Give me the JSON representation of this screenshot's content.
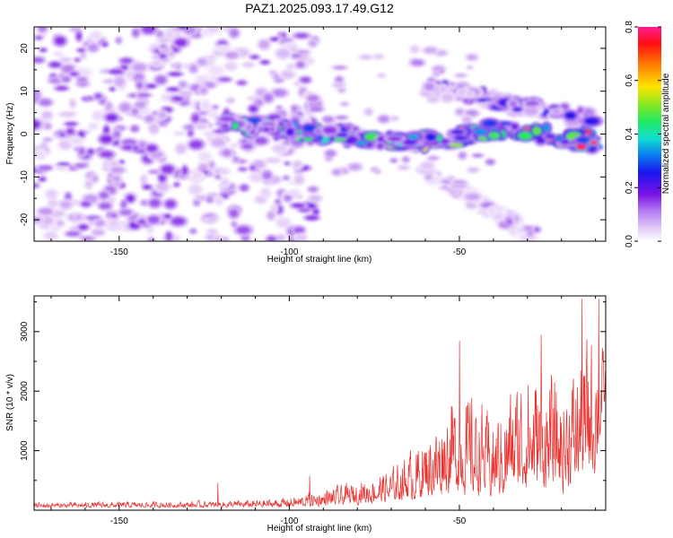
{
  "chart_data": [
    {
      "type": "heatmap",
      "title": "PAZ1.2025.093.17.49.G12",
      "xlabel": "Height of straight line (km)",
      "ylabel": "Frequency (Hz)",
      "xlim": [
        -175,
        -7
      ],
      "ylim": [
        -25,
        25
      ],
      "x_ticks": [
        -150,
        -100,
        -50
      ],
      "x_tick_labels": [
        "-150",
        "-100",
        "-50"
      ],
      "y_ticks": [
        20,
        10,
        0,
        -10,
        -20
      ],
      "y_tick_labels": [
        "20",
        "10",
        "0",
        "-10",
        "-20"
      ],
      "colorbar": {
        "label": "Normalized spectral amplitude",
        "range": [
          0,
          0.8
        ],
        "ticks": [
          0,
          0.2,
          0.4,
          0.6,
          0.8
        ],
        "tick_labels": [
          "0.0",
          "0.2",
          "0.4",
          "0.6",
          "0.8"
        ],
        "colormap": "rainbow (purple low → red high)"
      },
      "features": [
        {
          "name": "main signal ridge",
          "points": [
            [
              -120,
              3.5
            ],
            [
              -100,
              0.5
            ],
            [
              -85,
              0
            ],
            [
              -70,
              -1.5
            ],
            [
              -55,
              -1.5
            ],
            [
              -40,
              1
            ],
            [
              -25,
              0
            ],
            [
              -10,
              -2
            ]
          ],
          "peak_amplitude": 0.8
        },
        {
          "name": "upper branch",
          "points": [
            [
              -60,
              11
            ],
            [
              -45,
              9
            ],
            [
              -35,
              7
            ],
            [
              -20,
              5
            ],
            [
              -10,
              3
            ]
          ],
          "peak_amplitude": 0.35
        },
        {
          "name": "lower branch",
          "points": [
            [
              -60,
              -8
            ],
            [
              -50,
              -13
            ],
            [
              -40,
              -18
            ],
            [
              -28,
              -24
            ]
          ],
          "peak_amplitude": 0.15
        },
        {
          "name": "broadband noise region",
          "x_range": [
            -175,
            -100
          ],
          "y_range": [
            -25,
            25
          ],
          "typical_amplitude": 0.1
        }
      ]
    },
    {
      "type": "line",
      "xlabel": "Height of straight line (km)",
      "ylabel": "SNR (10 * v/v)",
      "xlim": [
        -175,
        -7
      ],
      "ylim": [
        0,
        3600
      ],
      "x_ticks": [
        -150,
        -100,
        -50
      ],
      "x_tick_labels": [
        "-150",
        "-100",
        "-50"
      ],
      "y_ticks": [
        1000,
        2000,
        3000
      ],
      "y_tick_labels": [
        "1000",
        "2000",
        "3000"
      ],
      "line_color": "#e8322f",
      "envelope": {
        "x": [
          -175,
          -130,
          -110,
          -100,
          -90,
          -80,
          -70,
          -60,
          -50,
          -40,
          -30,
          -20,
          -10,
          -7
        ],
        "y_max": [
          150,
          170,
          200,
          250,
          400,
          550,
          800,
          1500,
          2500,
          1800,
          2900,
          2400,
          3550,
          2700
        ],
        "y_min": [
          40,
          40,
          40,
          40,
          50,
          80,
          120,
          150,
          200,
          150,
          250,
          200,
          500,
          1800
        ]
      },
      "notable_peaks": [
        {
          "x": -121,
          "y": 460
        },
        {
          "x": -94,
          "y": 580
        },
        {
          "x": -50,
          "y": 2850
        },
        {
          "x": -26,
          "y": 2950
        },
        {
          "x": -14,
          "y": 3550
        },
        {
          "x": -9,
          "y": 3550
        }
      ]
    }
  ]
}
